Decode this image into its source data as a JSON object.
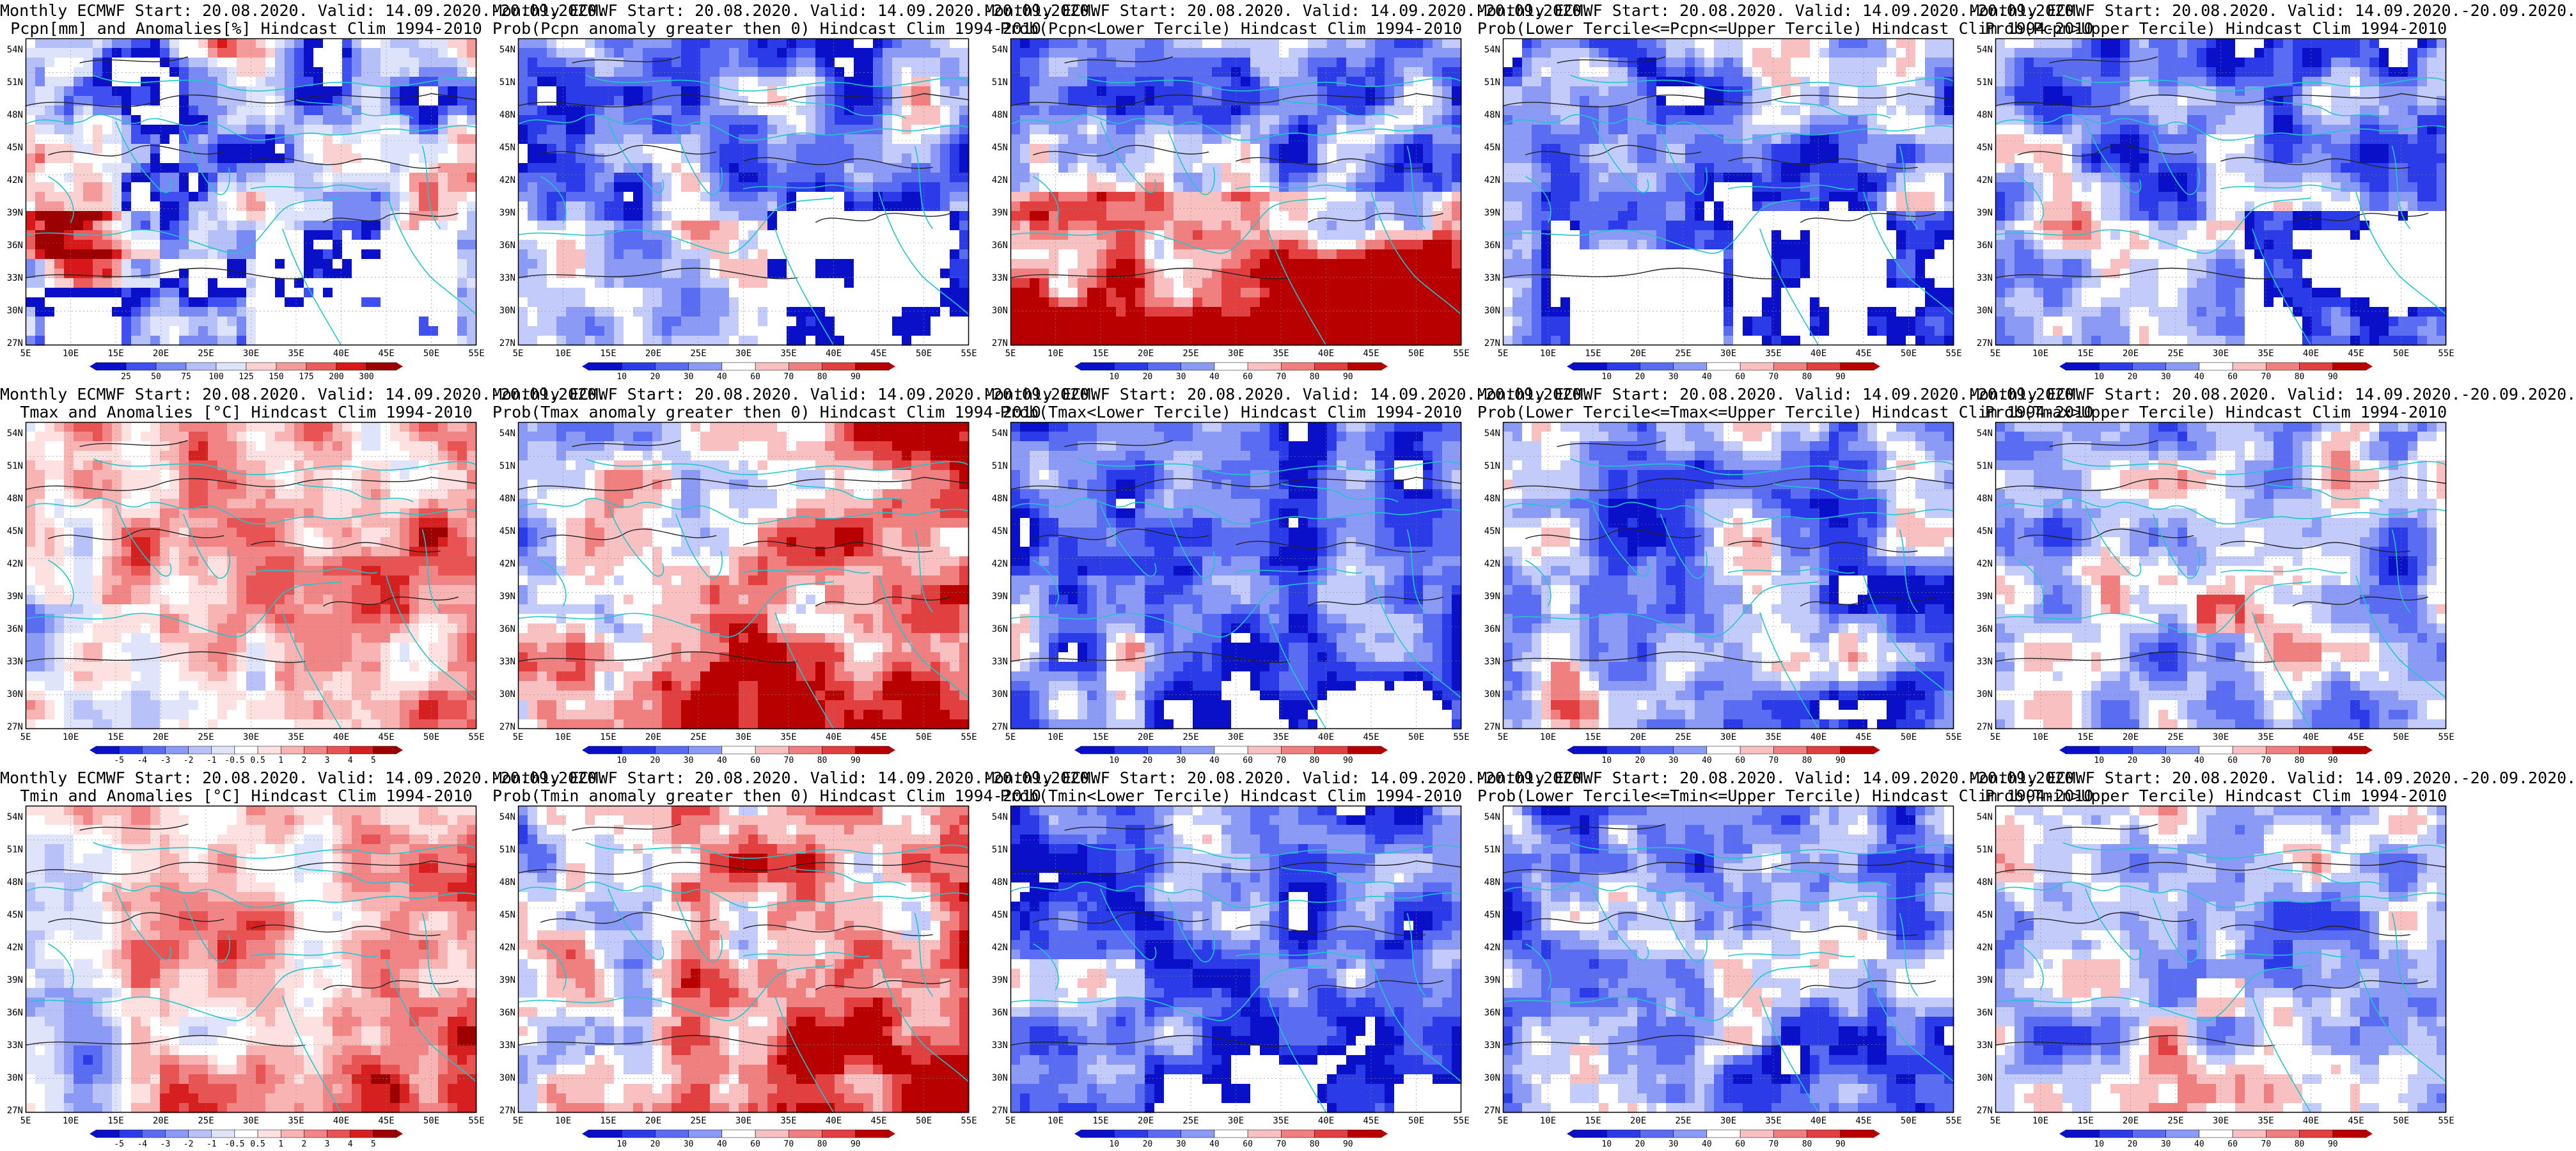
{
  "lat_labels": [
    "54N",
    "51N",
    "48N",
    "45N",
    "42N",
    "39N",
    "36N",
    "33N",
    "30N",
    "27N"
  ],
  "lon_labels": [
    "5E",
    "10E",
    "15E",
    "20E",
    "25E",
    "30E",
    "35E",
    "40E",
    "45E",
    "50E",
    "55E"
  ],
  "colors": {
    "coast": "#1fc7cc",
    "contour": "#222222",
    "frame": "#000000"
  },
  "legends": {
    "pcpn": [
      "25",
      "50",
      "75",
      "100",
      "125",
      "150",
      "175",
      "200",
      "300"
    ],
    "temp": [
      "-5",
      "-4",
      "-3",
      "-2",
      "-1",
      "-0.5",
      "0.5",
      "1",
      "2",
      "3",
      "4",
      "5"
    ],
    "prob": [
      "10",
      "20",
      "30",
      "40",
      "60",
      "70",
      "80",
      "90"
    ],
    "prob_alt": [
      "10",
      "20",
      "30",
      "40",
      "60",
      "70",
      "80",
      "90"
    ]
  },
  "palettes": {
    "pcpn": [
      "#0a10c8",
      "#3f4ff0",
      "#7a8af5",
      "#b5bff8",
      "#dde3fb",
      "#ffffff",
      "#fbd0d0",
      "#f49a9a",
      "#ec5c5c",
      "#d81818",
      "#9c0000"
    ],
    "temp": [
      "#0a10c8",
      "#2b3be8",
      "#5a6cf2",
      "#8b9af5",
      "#b8c2f8",
      "#dfe4fb",
      "#ffffff",
      "#fde0e0",
      "#f8b3b3",
      "#f18585",
      "#e85454",
      "#d62020",
      "#9c0000"
    ],
    "prob": [
      "#0a10c8",
      "#2b3be8",
      "#5a6cf2",
      "#8b9af5",
      "#c2cbf9",
      "#ffffff",
      "#f8c0c0",
      "#f08080",
      "#e24040",
      "#b80000"
    ]
  },
  "panels": [
    {
      "title1": "Monthly ECMWF Start: 20.08.2020. Valid: 14.09.2020.-20.09.2020.",
      "title2": "Pcpn[mm] and Anomalies[%] Hindcast Clim 1994-2010",
      "legend": "pcpn",
      "style": "pcpn"
    },
    {
      "title1": "Monthly ECMWF Start: 20.08.2020. Valid: 14.09.2020.-20.09.2020.",
      "title2": "Prob(Pcpn anomaly greater then 0) Hindcast Clim 1994-2010",
      "legend": "prob",
      "style": "blue_south"
    },
    {
      "title1": "Monthly ECMWF Start: 20.08.2020. Valid: 14.09.2020.-20.09.2020.",
      "title2": "Prob(Pcpn<Lower Tercile) Hindcast Clim 1994-2010",
      "legend": "prob",
      "style": "red_south"
    },
    {
      "title1": "Monthly ECMWF Start: 20.08.2020. Valid: 14.09.2020.-20.09.2020.",
      "title2": "Prob(Lower Tercile<=Pcpn<=Upper Tercile) Hindcast Clim 1994-2010",
      "legend": "prob",
      "style": "blue_heavy"
    },
    {
      "title1": "Monthly ECMWF Start: 20.08.2020. Valid: 14.09.2020.-20.09.2020.",
      "title2": "Prob(Pcpn>Upper Tercile) Hindcast Clim 1994-2010",
      "legend": "prob",
      "style": "blue_south"
    },
    {
      "title1": "Monthly ECMWF Start: 20.08.2020. Valid: 14.09.2020.-20.09.2020.",
      "title2": "Tmax and Anomalies [°C] Hindcast Clim 1994-2010",
      "legend": "temp",
      "style": "warm_light"
    },
    {
      "title1": "Monthly ECMWF Start: 20.08.2020. Valid: 14.09.2020.-20.09.2020.",
      "title2": "Prob(Tmax anomaly greater then 0) Hindcast Clim 1994-2010",
      "legend": "prob",
      "style": "warm_strong"
    },
    {
      "title1": "Monthly ECMWF Start: 20.08.2020. Valid: 14.09.2020.-20.09.2020.",
      "title2": "Prob(Tmax<Lower Tercile) Hindcast Clim 1994-2010",
      "legend": "prob",
      "style": "blue_deep"
    },
    {
      "title1": "Monthly ECMWF Start: 20.08.2020. Valid: 14.09.2020.-20.09.2020.",
      "title2": "Prob(Lower Tercile<=Tmax<=Upper Tercile) Hindcast Clim 1994-2010",
      "legend": "prob_alt",
      "style": "blue_mix"
    },
    {
      "title1": "Monthly ECMWF Start: 20.08.2020. Valid: 14.09.2020.-20.09.2020.",
      "title2": "Prob(Tmax>Upper Tercile) Hindcast Clim 1994-2010",
      "legend": "prob",
      "style": "blue_light"
    },
    {
      "title1": "Monthly ECMWF Start: 20.08.2020. Valid: 14.09.2020.-20.09.2020.",
      "title2": "Tmin and Anomalies [°C] Hindcast Clim 1994-2010",
      "legend": "temp",
      "style": "warm_light"
    },
    {
      "title1": "Monthly ECMWF Start: 20.08.2020. Valid: 14.09.2020.-20.09.2020.",
      "title2": "Prob(Tmin anomaly greater then 0) Hindcast Clim 1994-2010",
      "legend": "prob",
      "style": "warm_strong"
    },
    {
      "title1": "Monthly ECMWF Start: 20.08.2020. Valid: 14.09.2020.-20.09.2020.",
      "title2": "Prob(Tmin<Lower Tercile) Hindcast Clim 1994-2010",
      "legend": "prob",
      "style": "blue_deep"
    },
    {
      "title1": "Monthly ECMWF Start: 20.08.2020. Valid: 14.09.2020.-20.09.2020.",
      "title2": "Prob(Lower Tercile<=Tmin<=Upper Tercile) Hindcast Clim 1994-2010",
      "legend": "prob",
      "style": "blue_mix"
    },
    {
      "title1": "Monthly ECMWF Start: 20.08.2020. Valid: 14.09.2020.-20.09.2020.",
      "title2": "Prob(Tmin>Upper Tercile) Hindcast Clim 1994-2010",
      "legend": "prob",
      "style": "blue_light"
    }
  ]
}
